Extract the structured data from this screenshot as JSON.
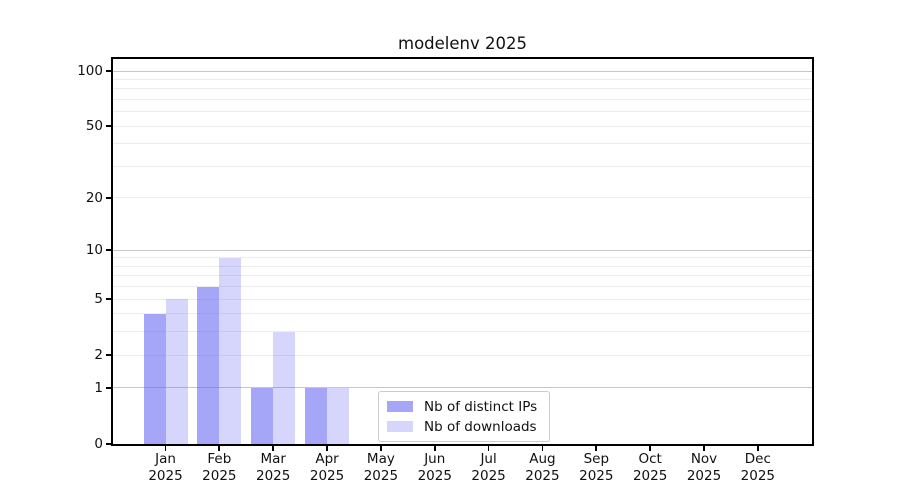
{
  "title": "modelenv 2025",
  "chart_data": {
    "type": "bar",
    "title": "modelenv 2025",
    "categories": [
      "Jan",
      "Feb",
      "Mar",
      "Apr",
      "May",
      "Jun",
      "Jul",
      "Aug",
      "Sep",
      "Oct",
      "Nov",
      "Dec"
    ],
    "x_axis": {
      "year": "2025"
    },
    "y_axis": {
      "scale": "log10(1+y)",
      "tick_values": [
        0,
        1,
        2,
        5,
        10,
        20,
        50,
        100
      ],
      "tick_labels": [
        "0",
        "1",
        "2",
        "5",
        "10",
        "20",
        "50",
        "100"
      ],
      "major_gridlines": [
        1,
        10,
        100
      ],
      "minor_gridlines": [
        2,
        3,
        4,
        5,
        6,
        7,
        8,
        9,
        20,
        30,
        40,
        50,
        60,
        70,
        80,
        90
      ],
      "ylim": [
        0,
        116
      ]
    },
    "series": [
      {
        "name": "Nb of distinct IPs",
        "color": "rgba(96,96,242,0.56)",
        "values": [
          4,
          6,
          1,
          1,
          0,
          0,
          0,
          0,
          0,
          0,
          0,
          0
        ]
      },
      {
        "name": "Nb of downloads",
        "color": "rgba(96,96,242,0.26)",
        "values": [
          5,
          9,
          3,
          1,
          0,
          0,
          0,
          0,
          0,
          0,
          0,
          0
        ]
      }
    ],
    "legend_position": "lower center",
    "grid": true,
    "colors": {
      "spine": "#000000",
      "grid_major": "#c6c6c6",
      "grid_minor": "#ececec",
      "background": "#ffffff"
    }
  }
}
